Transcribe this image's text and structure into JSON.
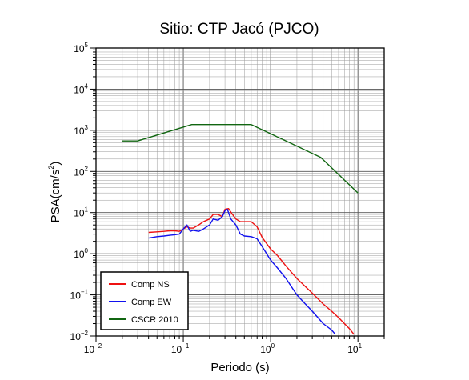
{
  "chart_data": {
    "type": "line",
    "title": "Sitio: CTP Jacó (PJCO)",
    "xlabel": "Periodo (s)",
    "ylabel_base": "PSA(cm/s",
    "ylabel_exp": "2",
    "ylabel_close": ")",
    "x_scale": "log",
    "y_scale": "log",
    "xlim": [
      0.01,
      20
    ],
    "ylim": [
      0.01,
      100000
    ],
    "grid": true,
    "legend_position": "bottom-left",
    "x_ticks": [
      {
        "value": 0.01,
        "base": "10",
        "exp": "−2"
      },
      {
        "value": 0.1,
        "base": "10",
        "exp": "−1"
      },
      {
        "value": 1,
        "base": "10",
        "exp": "0"
      },
      {
        "value": 10,
        "base": "10",
        "exp": "1"
      }
    ],
    "y_ticks": [
      {
        "value": 0.01,
        "base": "10",
        "exp": "−2"
      },
      {
        "value": 0.1,
        "base": "10",
        "exp": "−1"
      },
      {
        "value": 1,
        "base": "10",
        "exp": "0"
      },
      {
        "value": 10,
        "base": "10",
        "exp": "1"
      },
      {
        "value": 100,
        "base": "10",
        "exp": "2"
      },
      {
        "value": 1000,
        "base": "10",
        "exp": "3"
      },
      {
        "value": 10000,
        "base": "10",
        "exp": "4"
      },
      {
        "value": 100000,
        "base": "10",
        "exp": "5"
      }
    ],
    "series": [
      {
        "name": "Comp NS",
        "color": "#ee1111",
        "x": [
          0.04,
          0.05,
          0.06,
          0.07,
          0.08,
          0.09,
          0.1,
          0.11,
          0.12,
          0.13,
          0.15,
          0.17,
          0.2,
          0.22,
          0.25,
          0.28,
          0.3,
          0.33,
          0.36,
          0.4,
          0.45,
          0.5,
          0.6,
          0.7,
          0.8,
          1.0,
          1.2,
          1.5,
          2.0,
          3.0,
          4.0,
          5.0,
          6.0,
          7.0,
          8.0,
          9.0
        ],
        "y": [
          3.3,
          3.4,
          3.5,
          3.6,
          3.6,
          3.5,
          4.0,
          4.5,
          4.2,
          4.2,
          5.0,
          6.0,
          7.0,
          9.0,
          9.0,
          8.0,
          12.0,
          12.5,
          9.5,
          7.0,
          6.0,
          6.0,
          6.0,
          4.5,
          2.5,
          1.3,
          0.9,
          0.5,
          0.25,
          0.11,
          0.06,
          0.04,
          0.028,
          0.02,
          0.015,
          0.011
        ]
      },
      {
        "name": "Comp EW",
        "color": "#1111ee",
        "x": [
          0.04,
          0.05,
          0.06,
          0.07,
          0.08,
          0.09,
          0.1,
          0.11,
          0.12,
          0.13,
          0.15,
          0.17,
          0.2,
          0.22,
          0.25,
          0.28,
          0.3,
          0.32,
          0.35,
          0.4,
          0.45,
          0.5,
          0.6,
          0.7,
          0.8,
          1.0,
          1.2,
          1.5,
          2.0,
          2.5,
          3.0,
          4.0,
          5.0,
          5.5
        ],
        "y": [
          2.4,
          2.6,
          2.7,
          2.8,
          2.9,
          3.0,
          4.0,
          5.0,
          3.5,
          3.7,
          3.5,
          4.0,
          5.0,
          7.0,
          6.5,
          8.0,
          11.0,
          12.0,
          7.0,
          5.0,
          3.0,
          2.7,
          2.6,
          2.3,
          1.5,
          0.7,
          0.45,
          0.25,
          0.1,
          0.06,
          0.04,
          0.02,
          0.014,
          0.011
        ]
      },
      {
        "name": "CSCR 2010",
        "color": "#116611",
        "x": [
          0.02,
          0.03,
          0.125,
          0.6,
          3.75,
          10
        ],
        "y": [
          550,
          550,
          1375,
          1375,
          220,
          30
        ]
      }
    ]
  }
}
